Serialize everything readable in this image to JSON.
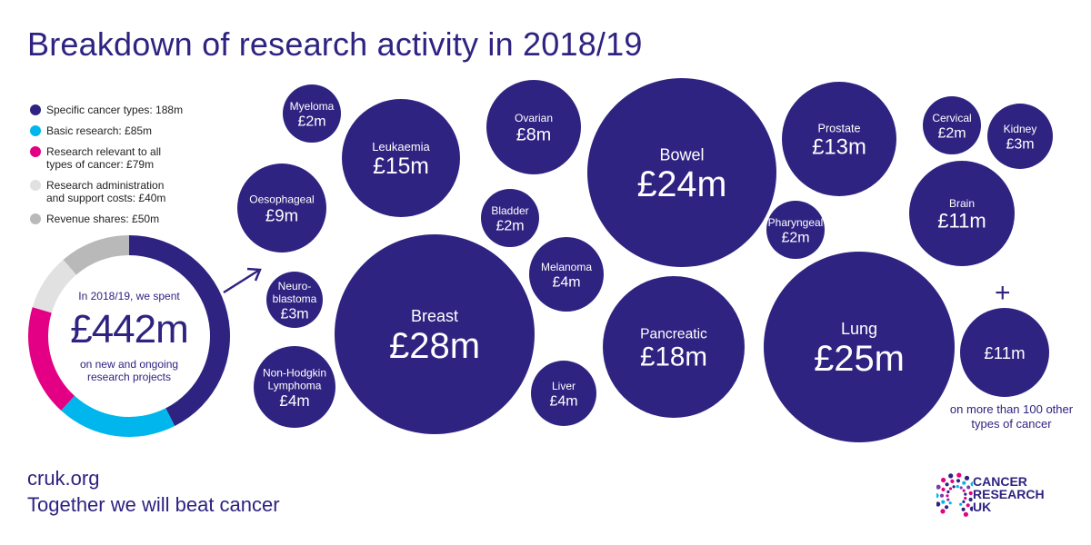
{
  "chart_data": [
    {
      "type": "pie",
      "intro": "In 2018/19, we spent",
      "total": "£442m",
      "note": "on new and ongoing research projects",
      "slices": [
        {
          "label": "Specific cancer types: 188m",
          "value": 188,
          "color": "#2e2381"
        },
        {
          "label": "Basic research: £85m",
          "value": 85,
          "color": "#00b6ed"
        },
        {
          "label": "Research relevant to all types of cancer: £79m",
          "value": 79,
          "color": "#e40085"
        },
        {
          "label": "Research administration and support costs: £40m",
          "value": 40,
          "color": "#e1e1e1"
        },
        {
          "label": "Revenue shares: £50m",
          "value": 50,
          "color": "#b9b9b9"
        }
      ]
    },
    {
      "type": "scatter",
      "units": "£m",
      "bubbles": [
        {
          "name": "Myeloma",
          "label": "£2m",
          "value": 2
        },
        {
          "name": "Leukaemia",
          "label": "£15m",
          "value": 15
        },
        {
          "name": "Ovarian",
          "label": "£8m",
          "value": 8
        },
        {
          "name": "Bowel",
          "label": "£24m",
          "value": 24
        },
        {
          "name": "Prostate",
          "label": "£13m",
          "value": 13
        },
        {
          "name": "Cervical",
          "label": "£2m",
          "value": 2
        },
        {
          "name": "Kidney",
          "label": "£3m",
          "value": 3
        },
        {
          "name": "Oesophageal",
          "label": "£9m",
          "value": 9
        },
        {
          "name": "Bladder",
          "label": "£2m",
          "value": 2
        },
        {
          "name": "Pharyngeal",
          "label": "£2m",
          "value": 2
        },
        {
          "name": "Brain",
          "label": "£11m",
          "value": 11
        },
        {
          "name": "Melanoma",
          "label": "£4m",
          "value": 4
        },
        {
          "name": "Neuro-blastoma",
          "label": "£3m",
          "value": 3
        },
        {
          "name": "Breast",
          "label": "£28m",
          "value": 28
        },
        {
          "name": "Pancreatic",
          "label": "£18m",
          "value": 18
        },
        {
          "name": "Lung",
          "label": "£25m",
          "value": 25
        },
        {
          "name": "Non-Hodgkin Lymphoma",
          "label": "£4m",
          "value": 4
        },
        {
          "name": "Liver",
          "label": "£4m",
          "value": 4
        },
        {
          "name": "",
          "label": "£11m",
          "value": 11
        }
      ]
    }
  ],
  "title": "Breakdown of research activity in 2018/19",
  "plus": "+",
  "other_note": "on more than 100 other types of cancer",
  "footer": {
    "url": "cruk.org",
    "tagline": "Together we will beat cancer"
  },
  "logo": {
    "line1": "CANCER",
    "line2": "RESEARCH",
    "line3": "UK"
  }
}
